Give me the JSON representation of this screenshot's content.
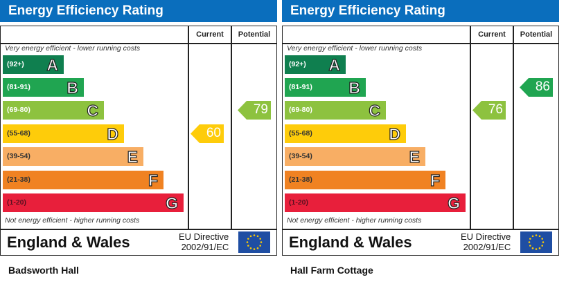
{
  "colors": {
    "header": "#0a6ebd",
    "A": "#0f7f4f",
    "B": "#20a551",
    "C": "#8dc23f",
    "D": "#fecc0a",
    "E": "#f8ae64",
    "F": "#f08222",
    "G": "#e81f3b"
  },
  "bands": [
    {
      "letter": "A",
      "range": "(92+)",
      "min": 92
    },
    {
      "letter": "B",
      "range": "(81-91)",
      "min": 81
    },
    {
      "letter": "C",
      "range": "(69-80)",
      "min": 69
    },
    {
      "letter": "D",
      "range": "(55-68)",
      "min": 55
    },
    {
      "letter": "E",
      "range": "(39-54)",
      "min": 39
    },
    {
      "letter": "F",
      "range": "(21-38)",
      "min": 21
    },
    {
      "letter": "G",
      "range": "(1-20)",
      "min": 1
    }
  ],
  "charts": [
    {
      "title": "Energy Efficiency Rating",
      "current_label": "Current",
      "potential_label": "Potential",
      "top_note": "Very energy efficient - lower running costs",
      "bottom_note": "Not energy efficient - higher running costs",
      "region": "England & Wales",
      "directive_line1": "EU Directive",
      "directive_line2": "2002/91/EC",
      "current": 60,
      "potential": 79,
      "caption": "Badsworth Hall"
    },
    {
      "title": "Energy Efficiency Rating",
      "current_label": "Current",
      "potential_label": "Potential",
      "top_note": "Very energy efficient - lower running costs",
      "bottom_note": "Not energy efficient - higher running costs",
      "region": "England & Wales",
      "directive_line1": "EU Directive",
      "directive_line2": "2002/91/EC",
      "current": 76,
      "potential": 86,
      "caption": "Hall Farm Cottage"
    }
  ]
}
